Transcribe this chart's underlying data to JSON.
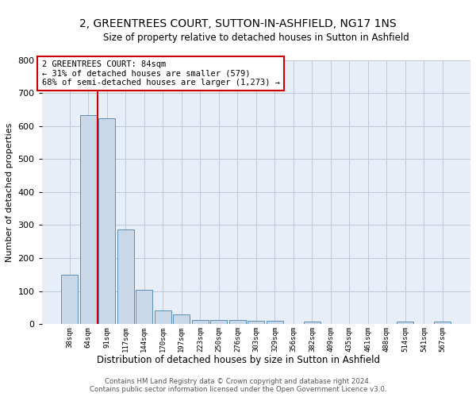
{
  "title1": "2, GREENTREES COURT, SUTTON-IN-ASHFIELD, NG17 1NS",
  "title2": "Size of property relative to detached houses in Sutton in Ashfield",
  "xlabel": "Distribution of detached houses by size in Sutton in Ashfield",
  "ylabel": "Number of detached properties",
  "footnote1": "Contains HM Land Registry data © Crown copyright and database right 2024.",
  "footnote2": "Contains public sector information licensed under the Open Government Licence v3.0.",
  "bar_labels": [
    "38sqm",
    "64sqm",
    "91sqm",
    "117sqm",
    "144sqm",
    "170sqm",
    "197sqm",
    "223sqm",
    "250sqm",
    "276sqm",
    "303sqm",
    "329sqm",
    "356sqm",
    "382sqm",
    "409sqm",
    "435sqm",
    "461sqm",
    "488sqm",
    "514sqm",
    "541sqm",
    "567sqm"
  ],
  "bar_values": [
    150,
    633,
    625,
    287,
    103,
    42,
    29,
    11,
    12,
    11,
    10,
    10,
    0,
    8,
    0,
    0,
    0,
    0,
    8,
    0,
    8
  ],
  "bar_color": "#c8d8e8",
  "bar_edge_color": "#5b8db8",
  "grid_color": "#c0c8d8",
  "background_color": "#e8eef8",
  "annotation_box_color": "#cc0000",
  "vline_color": "#cc0000",
  "annotation_text": "2 GREENTREES COURT: 84sqm\n← 31% of detached houses are smaller (579)\n68% of semi-detached houses are larger (1,273) →",
  "ylim": [
    0,
    800
  ],
  "yticks": [
    0,
    100,
    200,
    300,
    400,
    500,
    600,
    700,
    800
  ]
}
